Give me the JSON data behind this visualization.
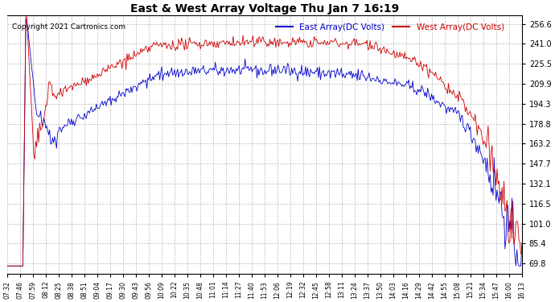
{
  "title": "East & West Array Voltage Thu Jan 7 16:19",
  "copyright": "Copyright 2021 Cartronics.com",
  "legend_east": "East Array(DC Volts)",
  "legend_west": "West Array(DC Volts)",
  "color_east": "#0000cc",
  "color_west": "#cc0000",
  "plot_bg_color": "#ffffff",
  "fig_bg_color": "#ffffff",
  "grid_color": "#aaaaaa",
  "yticks": [
    69.8,
    85.4,
    101.0,
    116.5,
    132.1,
    147.7,
    163.2,
    178.8,
    194.3,
    209.9,
    225.5,
    241.0,
    256.6
  ],
  "ylim": [
    62.0,
    263.0
  ],
  "xtick_labels": [
    "07:32",
    "07:46",
    "07:59",
    "08:12",
    "08:25",
    "08:38",
    "08:51",
    "09:04",
    "09:17",
    "09:30",
    "09:43",
    "09:56",
    "10:09",
    "10:22",
    "10:35",
    "10:48",
    "11:01",
    "11:14",
    "11:27",
    "11:40",
    "11:53",
    "12:06",
    "12:19",
    "12:32",
    "12:45",
    "12:58",
    "13:11",
    "13:24",
    "13:37",
    "13:50",
    "14:03",
    "14:16",
    "14:29",
    "14:42",
    "14:55",
    "15:08",
    "15:21",
    "15:34",
    "15:47",
    "16:00",
    "16:13"
  ],
  "figsize": [
    6.9,
    3.75
  ],
  "dpi": 100
}
